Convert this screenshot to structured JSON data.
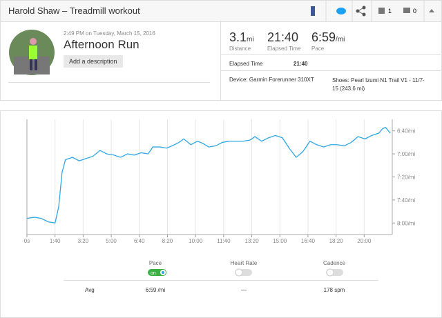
{
  "header": {
    "title": "Harold Shaw – Treadmill workout",
    "kudos": "1",
    "comments": "0"
  },
  "activity": {
    "datetime": "2:49 PM on Tuesday, March 15, 2016",
    "name": "Afternoon Run",
    "add_description": "Add a description"
  },
  "stats": [
    {
      "value": "3.1",
      "unit": "mi",
      "label": "Distance"
    },
    {
      "value": "21:40",
      "label": "Elapsed Time"
    },
    {
      "value": "6:59",
      "unit": "/mi",
      "label": "Pace"
    }
  ],
  "elapsed": {
    "label": "Elapsed Time",
    "value": "21:40"
  },
  "device": "Device: Garmin Forerunner 310XT",
  "shoes": "Shoes: Pearl Izumi N1 Trail V1 - 11/7-15 (243.6 mi)",
  "chart_data": {
    "type": "line",
    "x": [
      0,
      27,
      51,
      76,
      100,
      113,
      125,
      137,
      162,
      186,
      211,
      235,
      260,
      284,
      309,
      333,
      358,
      382,
      407,
      431,
      448,
      473,
      497,
      517,
      541,
      558,
      583,
      607,
      627,
      647,
      671,
      696,
      720,
      745,
      769,
      794,
      811,
      835,
      860,
      884,
      909,
      933,
      958,
      982,
      1007,
      1031,
      1056,
      1080,
      1105,
      1129,
      1154,
      1178,
      1203,
      1227,
      1252,
      1266,
      1276,
      1293
    ],
    "series": [
      {
        "name": "Pace",
        "color": "#2ea6e6",
        "values": [
          476,
          475,
          476,
          479,
          480,
          466,
          436,
          425,
          423,
          426,
          424,
          422,
          417,
          420,
          421,
          423,
          420,
          421,
          419,
          420,
          414,
          414,
          415,
          413,
          410,
          407,
          412,
          409,
          411,
          414,
          413,
          410,
          409,
          409,
          409,
          408,
          405,
          409,
          406,
          404,
          406,
          415,
          423,
          418,
          409,
          412,
          414,
          412,
          412,
          413,
          410,
          405,
          407,
          404,
          402,
          398,
          397,
          402
        ]
      }
    ],
    "xlim": [
      0,
      1300
    ],
    "xticks": [
      {
        "value": 0,
        "label": "0s"
      },
      {
        "value": 100,
        "label": "1:40"
      },
      {
        "value": 200,
        "label": "3:20"
      },
      {
        "value": 300,
        "label": "5:00"
      },
      {
        "value": 400,
        "label": "6:40"
      },
      {
        "value": 500,
        "label": "8:20"
      },
      {
        "value": 600,
        "label": "10:00"
      },
      {
        "value": 700,
        "label": "11:40"
      },
      {
        "value": 800,
        "label": "13:20"
      },
      {
        "value": 900,
        "label": "15:00"
      },
      {
        "value": 1000,
        "label": "16:40"
      },
      {
        "value": 1100,
        "label": "18:20"
      },
      {
        "value": 1200,
        "label": "20:00"
      }
    ],
    "ylim": [
      390,
      490
    ],
    "y_inverted": true,
    "yticks": [
      {
        "value": 400,
        "label": "6:40/mi"
      },
      {
        "value": 420,
        "label": "7:00/mi"
      },
      {
        "value": 440,
        "label": "7:20/mi"
      },
      {
        "value": 460,
        "label": "7:40/mi"
      },
      {
        "value": 480,
        "label": "8:00/mi"
      }
    ],
    "grid": true
  },
  "pace_toggle": "on",
  "toggles": [
    "Heart Rate",
    "Cadence"
  ],
  "summary": {
    "label": "Avg",
    "pace": "6:59 /mi",
    "heart_rate": "—",
    "cadence": "178 spm"
  }
}
